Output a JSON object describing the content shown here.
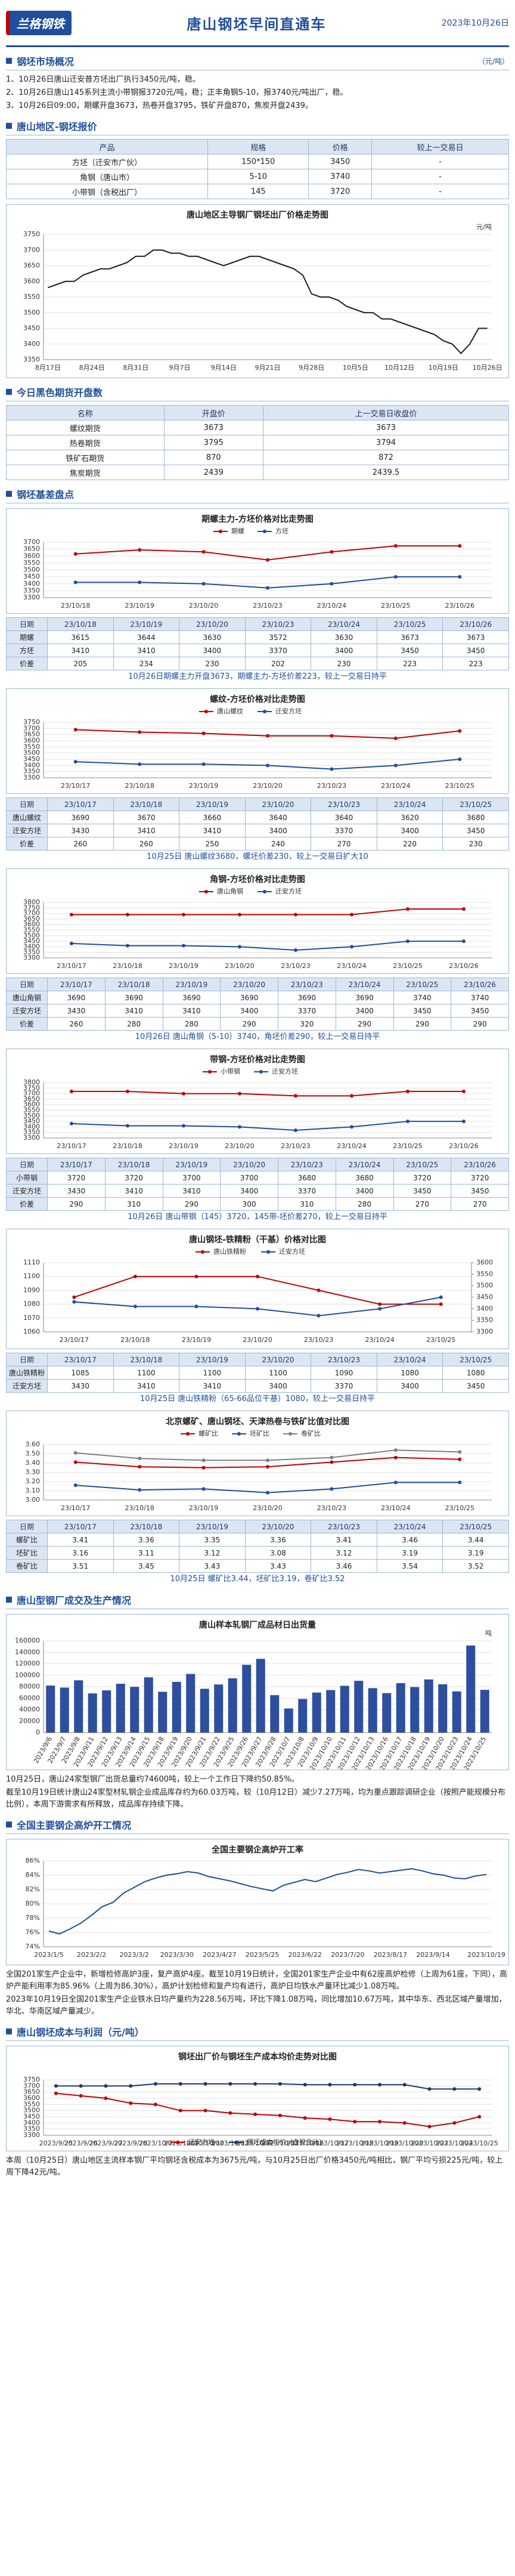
{
  "header": {
    "logo": "兰格钢铁",
    "title": "唐山钢坯早间直通车",
    "date": "2023年10月26日"
  },
  "blocks": [
    {
      "heading": "钢坯市场概况",
      "unit": "（元/吨）"
    },
    {
      "notes": [
        "1、10月26日唐山迁安普方坯出厂执行3450元/吨，稳。",
        "2、10月26日唐山145系列主流小带钢报3720元/吨，稳；正丰角钢5-10，报3740元/吨出厂，稳。",
        "3、10月26日09:00，期螺开盘3673，热卷开盘3795，铁矿开盘870，焦炭开盘2439。"
      ]
    },
    {
      "heading": "唐山地区-钢坯报价"
    },
    {
      "columns": [
        "产品",
        "规格",
        "价格",
        "较上一交易日"
      ],
      "rows": [
        [
          "方坯（迁安市广伙）",
          "150*150",
          3450,
          "-"
        ],
        [
          "角钢（唐山市）",
          "5-10",
          3740,
          "-"
        ],
        [
          "小带钢（含税出厂）",
          "145",
          3720,
          "-"
        ]
      ]
    },
    {
      "chart_data": {
        "type": "line",
        "title": "唐山地区主导钢厂钢坯出厂价格走势图",
        "unit": "元/吨",
        "color": "#1f1f1f",
        "categories": [
          "8月17日",
          null,
          null,
          null,
          null,
          "8月24日",
          null,
          null,
          null,
          null,
          "8月31日",
          null,
          null,
          null,
          null,
          "9月7日",
          null,
          null,
          null,
          null,
          "9月14日",
          null,
          null,
          null,
          null,
          "9月21日",
          null,
          null,
          null,
          null,
          "9月28日",
          null,
          null,
          null,
          null,
          "10月5日",
          null,
          null,
          null,
          null,
          "10月12日",
          null,
          null,
          null,
          null,
          "10月19日",
          null,
          null,
          null,
          null,
          "10月26日"
        ],
        "values": [
          3580,
          3590,
          3600,
          3600,
          3620,
          3630,
          3640,
          3640,
          3650,
          3660,
          3680,
          3680,
          3700,
          3700,
          3690,
          3690,
          3680,
          3680,
          3670,
          3660,
          3650,
          3660,
          3670,
          3680,
          3680,
          3670,
          3660,
          3650,
          3640,
          3620,
          3560,
          3550,
          3550,
          3540,
          3520,
          3510,
          3500,
          3500,
          3480,
          3480,
          3470,
          3460,
          3450,
          3440,
          3430,
          3410,
          3400,
          3370,
          3400,
          3450,
          3450
        ],
        "ylim": [
          3350,
          3750
        ],
        "yticks": [
          3350,
          3400,
          3450,
          3500,
          3550,
          3600,
          3650,
          3700,
          3750
        ],
        "grid": true
      }
    },
    {
      "heading": "今日黑色期货开盘数"
    },
    {
      "columns": [
        "名称",
        "开盘价",
        "上一交易日收盘价"
      ],
      "rows": [
        [
          "螺纹期货",
          3673,
          3673
        ],
        [
          "热卷期货",
          3795,
          3794
        ],
        [
          "铁矿石期货",
          870,
          872
        ],
        [
          "焦炭期货",
          2439,
          2439.5
        ]
      ]
    },
    {
      "heading": "钢坯基差盘点"
    },
    {
      "chart_data": {
        "type": "line",
        "title": "期螺主力-方坯价格对比走势图",
        "legend": "top",
        "categories": [
          "23/10/18",
          "23/10/19",
          "23/10/20",
          "23/10/23",
          "23/10/24",
          "23/10/25",
          "23/10/26"
        ],
        "series": [
          {
            "name": "期螺",
            "color": "#c00000",
            "values": [
              3615,
              3644,
              3630,
              3572,
              3630,
              3673,
              3673
            ]
          },
          {
            "name": "方坯",
            "color": "#1f4e9c",
            "values": [
              3410,
              3410,
              3400,
              3370,
              3400,
              3450,
              3450
            ]
          }
        ],
        "ylim": [
          3300,
          3700
        ],
        "yticks": [
          3300,
          3350,
          3400,
          3450,
          3500,
          3550,
          3600,
          3650,
          3700
        ],
        "grid": true
      },
      "date_header": "日期",
      "extra_rows": [
        {
          "name": "价差",
          "values": [
            205,
            234,
            230,
            202,
            230,
            223,
            223
          ]
        }
      ],
      "caption": "10月26日期螺主力开盘3673，期螺主力-方坯价差223，较上一交易日持平"
    },
    {
      "chart_data": {
        "type": "line",
        "title": "螺纹-方坯价格对比走势图",
        "legend": "top",
        "categories": [
          "23/10/17",
          "23/10/18",
          "23/10/19",
          "23/10/20",
          "23/10/23",
          "23/10/24",
          "23/10/25"
        ],
        "series": [
          {
            "name": "唐山螺纹",
            "color": "#c00000",
            "values": [
              3690,
              3670,
              3660,
              3640,
              3640,
              3620,
              3680
            ]
          },
          {
            "name": "迁安方坯",
            "color": "#1f4e9c",
            "values": [
              3430,
              3410,
              3410,
              3400,
              3370,
              3400,
              3450
            ]
          }
        ],
        "ylim": [
          3300,
          3750
        ],
        "yticks": [
          3300,
          3350,
          3400,
          3450,
          3500,
          3550,
          3600,
          3650,
          3700,
          3750
        ],
        "grid": true
      },
      "date_header": "日期",
      "extra_rows": [
        {
          "name": "价差",
          "values": [
            260,
            260,
            250,
            240,
            270,
            220,
            230
          ]
        }
      ],
      "caption": "10月25日 唐山螺纹3680，螺坯价差230，较上一交易日扩大10"
    },
    {
      "chart_data": {
        "type": "line",
        "title": "角钢-方坯价格对比走势图",
        "legend": "top",
        "categories": [
          "23/10/17",
          "23/10/18",
          "23/10/19",
          "23/10/20",
          "23/10/23",
          "23/10/24",
          "23/10/25",
          "23/10/26"
        ],
        "series": [
          {
            "name": "唐山角钢",
            "color": "#c00000",
            "values": [
              3690,
              3690,
              3690,
              3690,
              3690,
              3690,
              3740,
              3740
            ]
          },
          {
            "name": "迁安方坯",
            "color": "#1f4e9c",
            "values": [
              3430,
              3410,
              3410,
              3400,
              3370,
              3400,
              3450,
              3450
            ]
          }
        ],
        "ylim": [
          3300,
          3800
        ],
        "yticks": [
          3300,
          3350,
          3400,
          3450,
          3500,
          3550,
          3600,
          3650,
          3700,
          3750,
          3800
        ],
        "grid": true
      },
      "date_header": "日期",
      "extra_rows": [
        {
          "name": "价差",
          "values": [
            260,
            280,
            280,
            290,
            320,
            290,
            290,
            290
          ]
        }
      ],
      "caption": "10月26日 唐山角钢（5-10）3740，角坯价差290，较上一交易日持平"
    },
    {
      "chart_data": {
        "type": "line",
        "title": "带钢-方坯价格对比走势图",
        "legend": "top",
        "categories": [
          "23/10/17",
          "23/10/18",
          "23/10/19",
          "23/10/20",
          "23/10/23",
          "23/10/24",
          "23/10/25",
          "23/10/26"
        ],
        "series": [
          {
            "name": "小带钢",
            "color": "#c00000",
            "values": [
              3720,
              3720,
              3700,
              3700,
              3680,
              3680,
              3720,
              3720
            ]
          },
          {
            "name": "迁安方坯",
            "color": "#1f4e9c",
            "values": [
              3430,
              3410,
              3410,
              3400,
              3370,
              3400,
              3450,
              3450
            ]
          }
        ],
        "ylim": [
          3300,
          3800
        ],
        "yticks": [
          3300,
          3350,
          3400,
          3450,
          3500,
          3550,
          3600,
          3650,
          3700,
          3750,
          3800
        ],
        "grid": true
      },
      "date_header": "日期",
      "extra_rows": [
        {
          "name": "价差",
          "values": [
            290,
            310,
            290,
            300,
            310,
            280,
            270,
            270
          ]
        }
      ],
      "caption": "10月26日 唐山带钢（145）3720，145带-坯价差270，较上一交易日持平"
    },
    {
      "chart_data": {
        "type": "line",
        "title": "唐山钢坯-铁精粉（干基）价格对比图",
        "legend": "top",
        "categories": [
          "23/10/17",
          "23/10/18",
          "23/10/19",
          "23/10/20",
          "23/10/23",
          "23/10/24",
          "23/10/25"
        ],
        "series": [
          {
            "name": "唐山铁精粉",
            "color": "#c00000",
            "values": [
              1085,
              1100,
              1100,
              1100,
              1090,
              1080,
              1080
            ]
          },
          {
            "name": "迁安方坯",
            "color": "#1f4e9c",
            "axis": "y2",
            "values": [
              3430,
              3410,
              3410,
              3400,
              3370,
              3400,
              3450
            ]
          }
        ],
        "ylim": [
          1060,
          1110
        ],
        "yticks": [
          1060,
          1070,
          1080,
          1090,
          1100,
          1110
        ],
        "y2lim": [
          3300,
          3600
        ],
        "y2ticks": [
          3300,
          3350,
          3400,
          3450,
          3500,
          3550,
          3600
        ],
        "grid": true
      },
      "date_header": "日期",
      "caption": "10月25日 唐山铁精粉（65-66品位干基）1080，较上一交易日持平"
    },
    {
      "chart_data": {
        "type": "line",
        "title": "北京螺矿、唐山钢坯、天津热卷与铁矿比值对比图",
        "legend": "top",
        "categories": [
          "23/10/17",
          "23/10/18",
          "23/10/19",
          "23/10/20",
          "23/10/23",
          "23/10/24",
          "23/10/25"
        ],
        "series": [
          {
            "name": "螺矿比",
            "color": "#c00000",
            "values": [
              3.41,
              3.36,
              3.35,
              3.36,
              3.41,
              3.46,
              3.44
            ]
          },
          {
            "name": "坯矿比",
            "color": "#1f4e9c",
            "values": [
              3.16,
              3.11,
              3.12,
              3.08,
              3.12,
              3.19,
              3.19
            ]
          },
          {
            "name": "卷矿比",
            "color": "#7f7f7f",
            "values": [
              3.51,
              3.45,
              3.43,
              3.43,
              3.46,
              3.54,
              3.52
            ]
          }
        ],
        "ylim": [
          3,
          3.6
        ],
        "yticks": [
          {
            "value": 3,
            "label": "3.00"
          },
          {
            "value": 3.1,
            "label": "3.10"
          },
          {
            "value": 3.2,
            "label": "3.20"
          },
          {
            "value": 3.3,
            "label": "3.30"
          },
          {
            "value": 3.4,
            "label": "3.40"
          },
          {
            "value": 3.5,
            "label": "3.50"
          },
          {
            "value": 3.6,
            "label": "3.60"
          }
        ],
        "grid": true
      },
      "date_header": "日期",
      "caption": "10月25日 螺矿比3.44，坯矿比3.19，卷矿比3.52"
    },
    {
      "heading": "唐山型钢厂成交及生产情况"
    },
    {
      "chart_data": {
        "type": "bar",
        "title": "唐山样本轧钢厂成品材日出货量",
        "unit": "吨",
        "color": "#2e4f9e",
        "categories": [
          "2023/9/6",
          "2023/9/7",
          "2023/9/8",
          "2023/9/11",
          "2023/9/12",
          "2023/9/13",
          "2023/9/14",
          "2023/9/15",
          "2023/9/18",
          "2023/9/19",
          "2023/9/20",
          "2023/9/21",
          "2023/9/22",
          "2023/9/25",
          "2023/9/26",
          "2023/9/27",
          "2023/9/28",
          "2023/10/7",
          "2023/10/8",
          "2023/10/9",
          "2023/10/10",
          "2023/10/11",
          "2023/10/12",
          "2023/10/13",
          "2023/10/16",
          "2023/10/17",
          "2023/10/18",
          "2023/10/19",
          "2023/10/20",
          "2023/10/23",
          "2023/10/24",
          "2023/10/25"
        ],
        "values": [
          82000,
          78500,
          91200,
          68400,
          73600,
          85200,
          79800,
          96400,
          71200,
          88500,
          102300,
          76400,
          83900,
          94600,
          118200,
          128500,
          65300,
          42100,
          58700,
          69800,
          74200,
          81600,
          90300,
          77500,
          68900,
          86200,
          79400,
          92700,
          84300,
          71800,
          151800,
          74600
        ],
        "ylim": [
          0,
          160000
        ],
        "yticks": [
          0,
          20000,
          40000,
          60000,
          80000,
          100000,
          120000,
          140000,
          160000
        ],
        "grid": true
      }
    },
    {
      "notes": [
        "10月25日，唐山24家型钢厂出货总量约74600吨，较上一个工作日下降约50.85%。",
        "截至10月19日统计唐山24家型材轧钢企业成品库存约为60.03万吨，较（10月12日）减少7.27万吨，均为重点跟踪调研企业（按照产能规模分布比例），本周下游需求有所释放，成品库存持续下降。"
      ]
    },
    {
      "heading": "全国主要钢企高炉开工情况"
    },
    {
      "chart_data": {
        "type": "line",
        "title": "全国主要钢企高炉开工率",
        "color": "#1f4e9c",
        "categories": [
          "2023/1/5",
          null,
          null,
          null,
          "2023/2/2",
          null,
          null,
          null,
          "2023/3/2",
          null,
          null,
          null,
          "2023/3/30",
          null,
          null,
          null,
          "2023/4/27",
          null,
          null,
          null,
          "2023/5/25",
          null,
          null,
          null,
          "2023/6/22",
          null,
          null,
          null,
          "2023/7/20",
          null,
          null,
          null,
          "2023/8/17",
          null,
          null,
          null,
          "2023/9/14",
          null,
          null,
          null,
          null,
          "2023/10/19"
        ],
        "values": [
          76.2,
          75.8,
          76.5,
          77.3,
          78.4,
          79.6,
          80.2,
          81.5,
          82.3,
          83.1,
          83.6,
          84.0,
          84.2,
          84.5,
          84.3,
          83.8,
          83.5,
          83.2,
          82.8,
          82.4,
          82.1,
          81.8,
          82.6,
          83.0,
          83.4,
          83.1,
          83.6,
          84.1,
          84.4,
          84.8,
          84.6,
          84.3,
          84.5,
          84.7,
          84.9,
          84.6,
          84.2,
          84.0,
          83.6,
          83.5,
          83.9,
          84.1
        ],
        "ylim": [
          74,
          86
        ],
        "yticks": [
          {
            "value": 74,
            "label": "74%"
          },
          {
            "value": 76,
            "label": "76%"
          },
          {
            "value": 78,
            "label": "78%"
          },
          {
            "value": 80,
            "label": "80%"
          },
          {
            "value": 82,
            "label": "82%"
          },
          {
            "value": 84,
            "label": "84%"
          },
          {
            "value": 86,
            "label": "86%"
          }
        ],
        "grid": true
      }
    },
    {
      "notes": [
        "全国201家生产企业中，新增检修高炉3座，复产高炉4座。截至10月19日统计，全国201家生产企业中有62座高炉检修（上周为61座，下同），高炉产能利用率为85.96%（上周为86.30%），高炉计划检修和复产均有进行，高炉日均铁水产量环比减少1.08万吨。",
        "2023年10月19日全国201家生产企业铁水日均产量约为228.56万吨，环比下降1.08万吨，同比增加10.67万吨，其中华东、西北区域产量增加，华北、华南区域产量减少。"
      ]
    },
    {
      "heading": "唐山钢坯成本与利润（元/吨）"
    },
    {
      "chart_data": {
        "type": "line",
        "title": "钢坯出厂价与钢坯生产成本均价走势对比图",
        "legend": "bottom",
        "categories": [
          "2023/9/25",
          "2023/9/26",
          "2023/9/27",
          "2023/9/28",
          "2023/10/7",
          "2023/10/9",
          "2023/10/10",
          "2023/10/11",
          "2023/10/12",
          "2023/10/13",
          "2023/10/16",
          "2023/10/17",
          "2023/10/18",
          "2023/10/19",
          "2023/10/20",
          "2023/10/23",
          "2023/10/24",
          "2023/10/25"
        ],
        "series": [
          {
            "name": "迁安方坯",
            "color": "#c00000",
            "values": [
              3640,
              3620,
              3600,
              3560,
              3550,
              3500,
              3500,
              3480,
              3470,
              3460,
              3440,
              3430,
              3410,
              3410,
              3400,
              3370,
              3400,
              3450
            ]
          },
          {
            "name": "钢坯成本均价（含税含计）",
            "color": "#1f3864",
            "values": [
              3700,
              3700,
              3700,
              3700,
              3717,
              3717,
              3717,
              3717,
              3717,
              3717,
              3710,
              3710,
              3710,
              3710,
              3710,
              3675,
              3675,
              3675
            ]
          }
        ],
        "ylim": [
          3300,
          3750
        ],
        "yticks": [
          3300,
          3350,
          3400,
          3450,
          3500,
          3550,
          3600,
          3650,
          3700,
          3750
        ],
        "grid": true
      }
    },
    {
      "notes": [
        "本周（10月25日）唐山地区主流样本钢厂平均钢坯含税成本为3675元/吨，与10月25日出厂价格3450元/吨相比，钢厂平均亏损225元/吨，较上周下降42元/吨。"
      ]
    }
  ]
}
